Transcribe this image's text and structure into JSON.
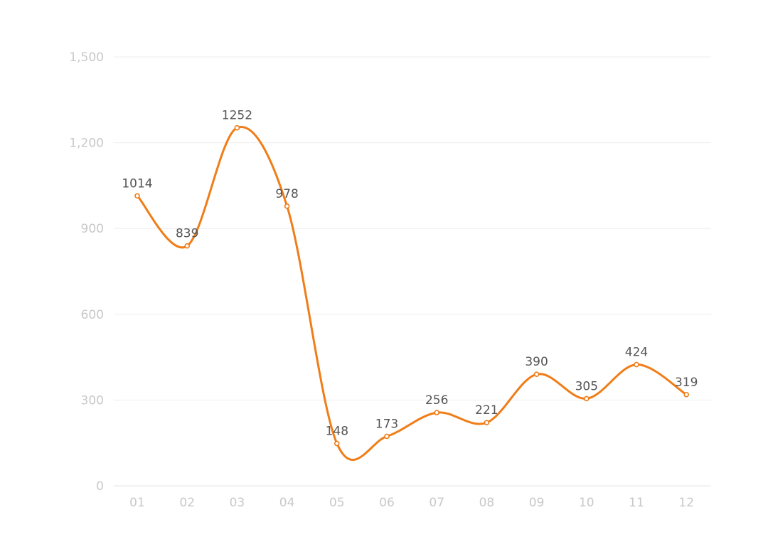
{
  "chart_data": {
    "type": "line",
    "title": "",
    "xlabel": "",
    "ylabel": "",
    "categories": [
      "01",
      "02",
      "03",
      "04",
      "05",
      "06",
      "07",
      "08",
      "09",
      "10",
      "11",
      "12"
    ],
    "series": [
      {
        "values": [
          1014,
          839,
          1252,
          978,
          148,
          173,
          256,
          221,
          390,
          305,
          424,
          319
        ]
      }
    ],
    "data_labels": [
      "1014",
      "839",
      "1252",
      "978",
      "148",
      "173",
      "256",
      "221",
      "390",
      "305",
      "424",
      "319"
    ],
    "ylim": [
      0,
      1500
    ],
    "y_ticks": [
      0,
      300,
      600,
      900,
      1200,
      1500
    ],
    "y_tick_labels": [
      "0",
      "300",
      "600",
      "900",
      "1,200",
      "1,500"
    ],
    "grid": true,
    "smooth": true,
    "colors": {
      "line": "#f07d17",
      "grid": "#eeeeee",
      "tick_text": "#c8c8c8",
      "label_text": "#555555"
    }
  }
}
